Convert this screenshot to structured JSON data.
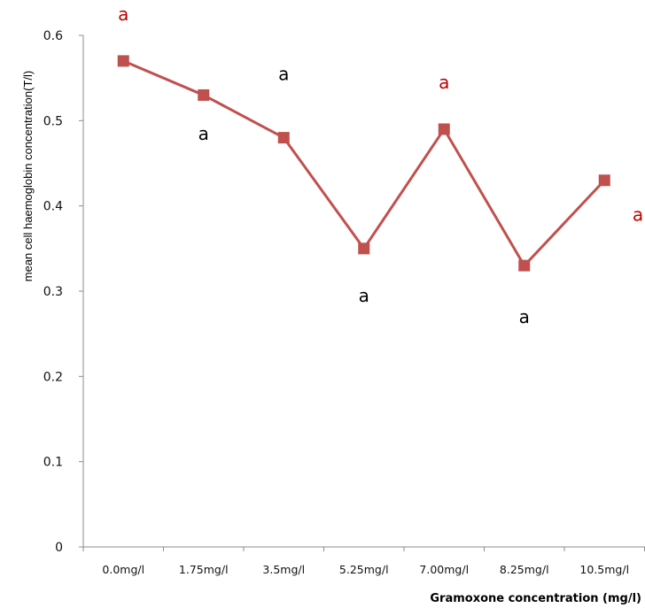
{
  "chart_data": {
    "type": "line",
    "title": "",
    "xlabel": "Gramoxone concentration (mg/l)",
    "ylabel": "mean cell haemoglobin concentration(T/l)",
    "ylim": [
      0,
      0.6
    ],
    "yticks": [
      "0",
      "0.1",
      "0.2",
      "0.3",
      "0.4",
      "0.5",
      "0.6"
    ],
    "categories": [
      "0.0mg/l",
      "1.75mg/l",
      "3.5mg/l",
      "5.25mg/l",
      "7.00mg/l",
      "8.25mg/l",
      "10.5mg/l"
    ],
    "series": [
      {
        "color": "#c0504d",
        "marker": "square",
        "values": [
          0.57,
          0.53,
          0.48,
          0.35,
          0.49,
          0.33,
          0.43
        ]
      }
    ],
    "annotations": [
      {
        "text": "a",
        "category": "0.0mg/l",
        "value": 0.625,
        "color": "#c00000"
      },
      {
        "text": "a",
        "category": "1.75mg/l",
        "value": 0.485,
        "color": "#000000"
      },
      {
        "text": "a",
        "category": "3.5mg/l",
        "value": 0.555,
        "color": "#000000"
      },
      {
        "text": "a",
        "category": "5.25mg/l",
        "value": 0.295,
        "color": "#000000"
      },
      {
        "text": "a",
        "category": "7.00mg/l",
        "value": 0.545,
        "color": "#c00000"
      },
      {
        "text": "a",
        "category": "8.25mg/l",
        "value": 0.27,
        "color": "#000000"
      },
      {
        "text": "a",
        "category": "10.5mg/l",
        "value": 0.39,
        "color": "#c00000"
      }
    ],
    "grid": false,
    "legend": "none"
  }
}
